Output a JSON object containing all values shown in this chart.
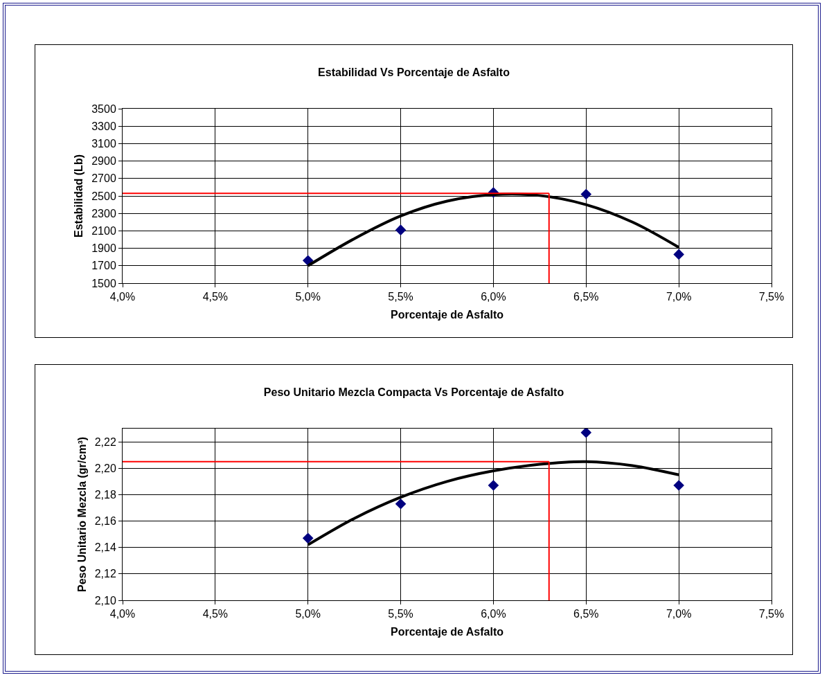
{
  "chart_data": [
    {
      "type": "scatter",
      "title": "Estabilidad Vs Porcentaje de Asfalto",
      "xlabel": "Porcentaje de Asfalto",
      "ylabel": "Estabilidad (Lb)",
      "xlim": [
        4.0,
        7.5
      ],
      "xticks": [
        {
          "value": 4.0,
          "label": "4,0%"
        },
        {
          "value": 4.5,
          "label": "4,5%"
        },
        {
          "value": 5.0,
          "label": "5,0%"
        },
        {
          "value": 5.5,
          "label": "5,5%"
        },
        {
          "value": 6.0,
          "label": "6,0%"
        },
        {
          "value": 6.5,
          "label": "6,5%"
        },
        {
          "value": 7.0,
          "label": "7,0%"
        },
        {
          "value": 7.5,
          "label": "7,5%"
        }
      ],
      "ylim": [
        1500,
        3500
      ],
      "yticks": [
        1500,
        1700,
        1900,
        2100,
        2300,
        2500,
        2700,
        2900,
        3100,
        3300,
        3500
      ],
      "grid": true,
      "series": [
        {
          "marker": "diamond",
          "color": "#000080",
          "x": [
            5.0,
            5.5,
            6.0,
            6.5,
            7.0
          ],
          "values": [
            1760,
            2110,
            2540,
            2520,
            1830
          ]
        },
        {
          "type": "line",
          "marker": "none",
          "color": "#000000",
          "x": [
            5.0,
            5.25,
            5.5,
            5.75,
            6.0,
            6.25,
            6.5,
            6.75,
            7.0
          ],
          "values": [
            1700,
            2010,
            2270,
            2440,
            2515,
            2505,
            2400,
            2200,
            1910
          ]
        }
      ],
      "ref_lines": [
        {
          "axis": "y",
          "value": 2530,
          "color": "#ff0000"
        },
        {
          "axis": "x",
          "value": 6.3,
          "color": "#ff0000"
        }
      ]
    },
    {
      "type": "scatter",
      "title": "Peso Unitario Mezcla Compacta Vs Porcentaje de Asfalto",
      "xlabel": "Porcentaje de Asfalto",
      "ylabel": "Peso Unitario Mezcla (gr/cm³)",
      "xlim": [
        4.0,
        7.5
      ],
      "xticks": [
        {
          "value": 4.0,
          "label": "4,0%"
        },
        {
          "value": 4.5,
          "label": "4,5%"
        },
        {
          "value": 5.0,
          "label": "5,0%"
        },
        {
          "value": 5.5,
          "label": "5,5%"
        },
        {
          "value": 6.0,
          "label": "6,0%"
        },
        {
          "value": 6.5,
          "label": "6,5%"
        },
        {
          "value": 7.0,
          "label": "7,0%"
        },
        {
          "value": 7.5,
          "label": "7,5%"
        }
      ],
      "ylim": [
        2.1,
        2.23
      ],
      "yticks": [
        {
          "value": 2.1,
          "label": "2,10"
        },
        {
          "value": 2.12,
          "label": "2,12"
        },
        {
          "value": 2.14,
          "label": "2,14"
        },
        {
          "value": 2.16,
          "label": "2,16"
        },
        {
          "value": 2.18,
          "label": "2,18"
        },
        {
          "value": 2.2,
          "label": "2,20"
        },
        {
          "value": 2.22,
          "label": "2,22"
        }
      ],
      "grid": true,
      "series": [
        {
          "marker": "diamond",
          "color": "#000080",
          "x": [
            5.0,
            5.5,
            6.0,
            6.5,
            7.0
          ],
          "values": [
            2.147,
            2.173,
            2.187,
            2.227,
            2.187
          ]
        },
        {
          "type": "line",
          "marker": "none",
          "color": "#000000",
          "x": [
            5.0,
            5.25,
            5.5,
            5.75,
            6.0,
            6.25,
            6.5,
            6.75,
            7.0
          ],
          "values": [
            2.142,
            2.162,
            2.178,
            2.19,
            2.198,
            2.203,
            2.205,
            2.202,
            2.195
          ]
        }
      ],
      "ref_lines": [
        {
          "axis": "y",
          "value": 2.205,
          "color": "#ff0000"
        },
        {
          "axis": "x",
          "value": 6.3,
          "color": "#ff0000"
        }
      ]
    }
  ]
}
